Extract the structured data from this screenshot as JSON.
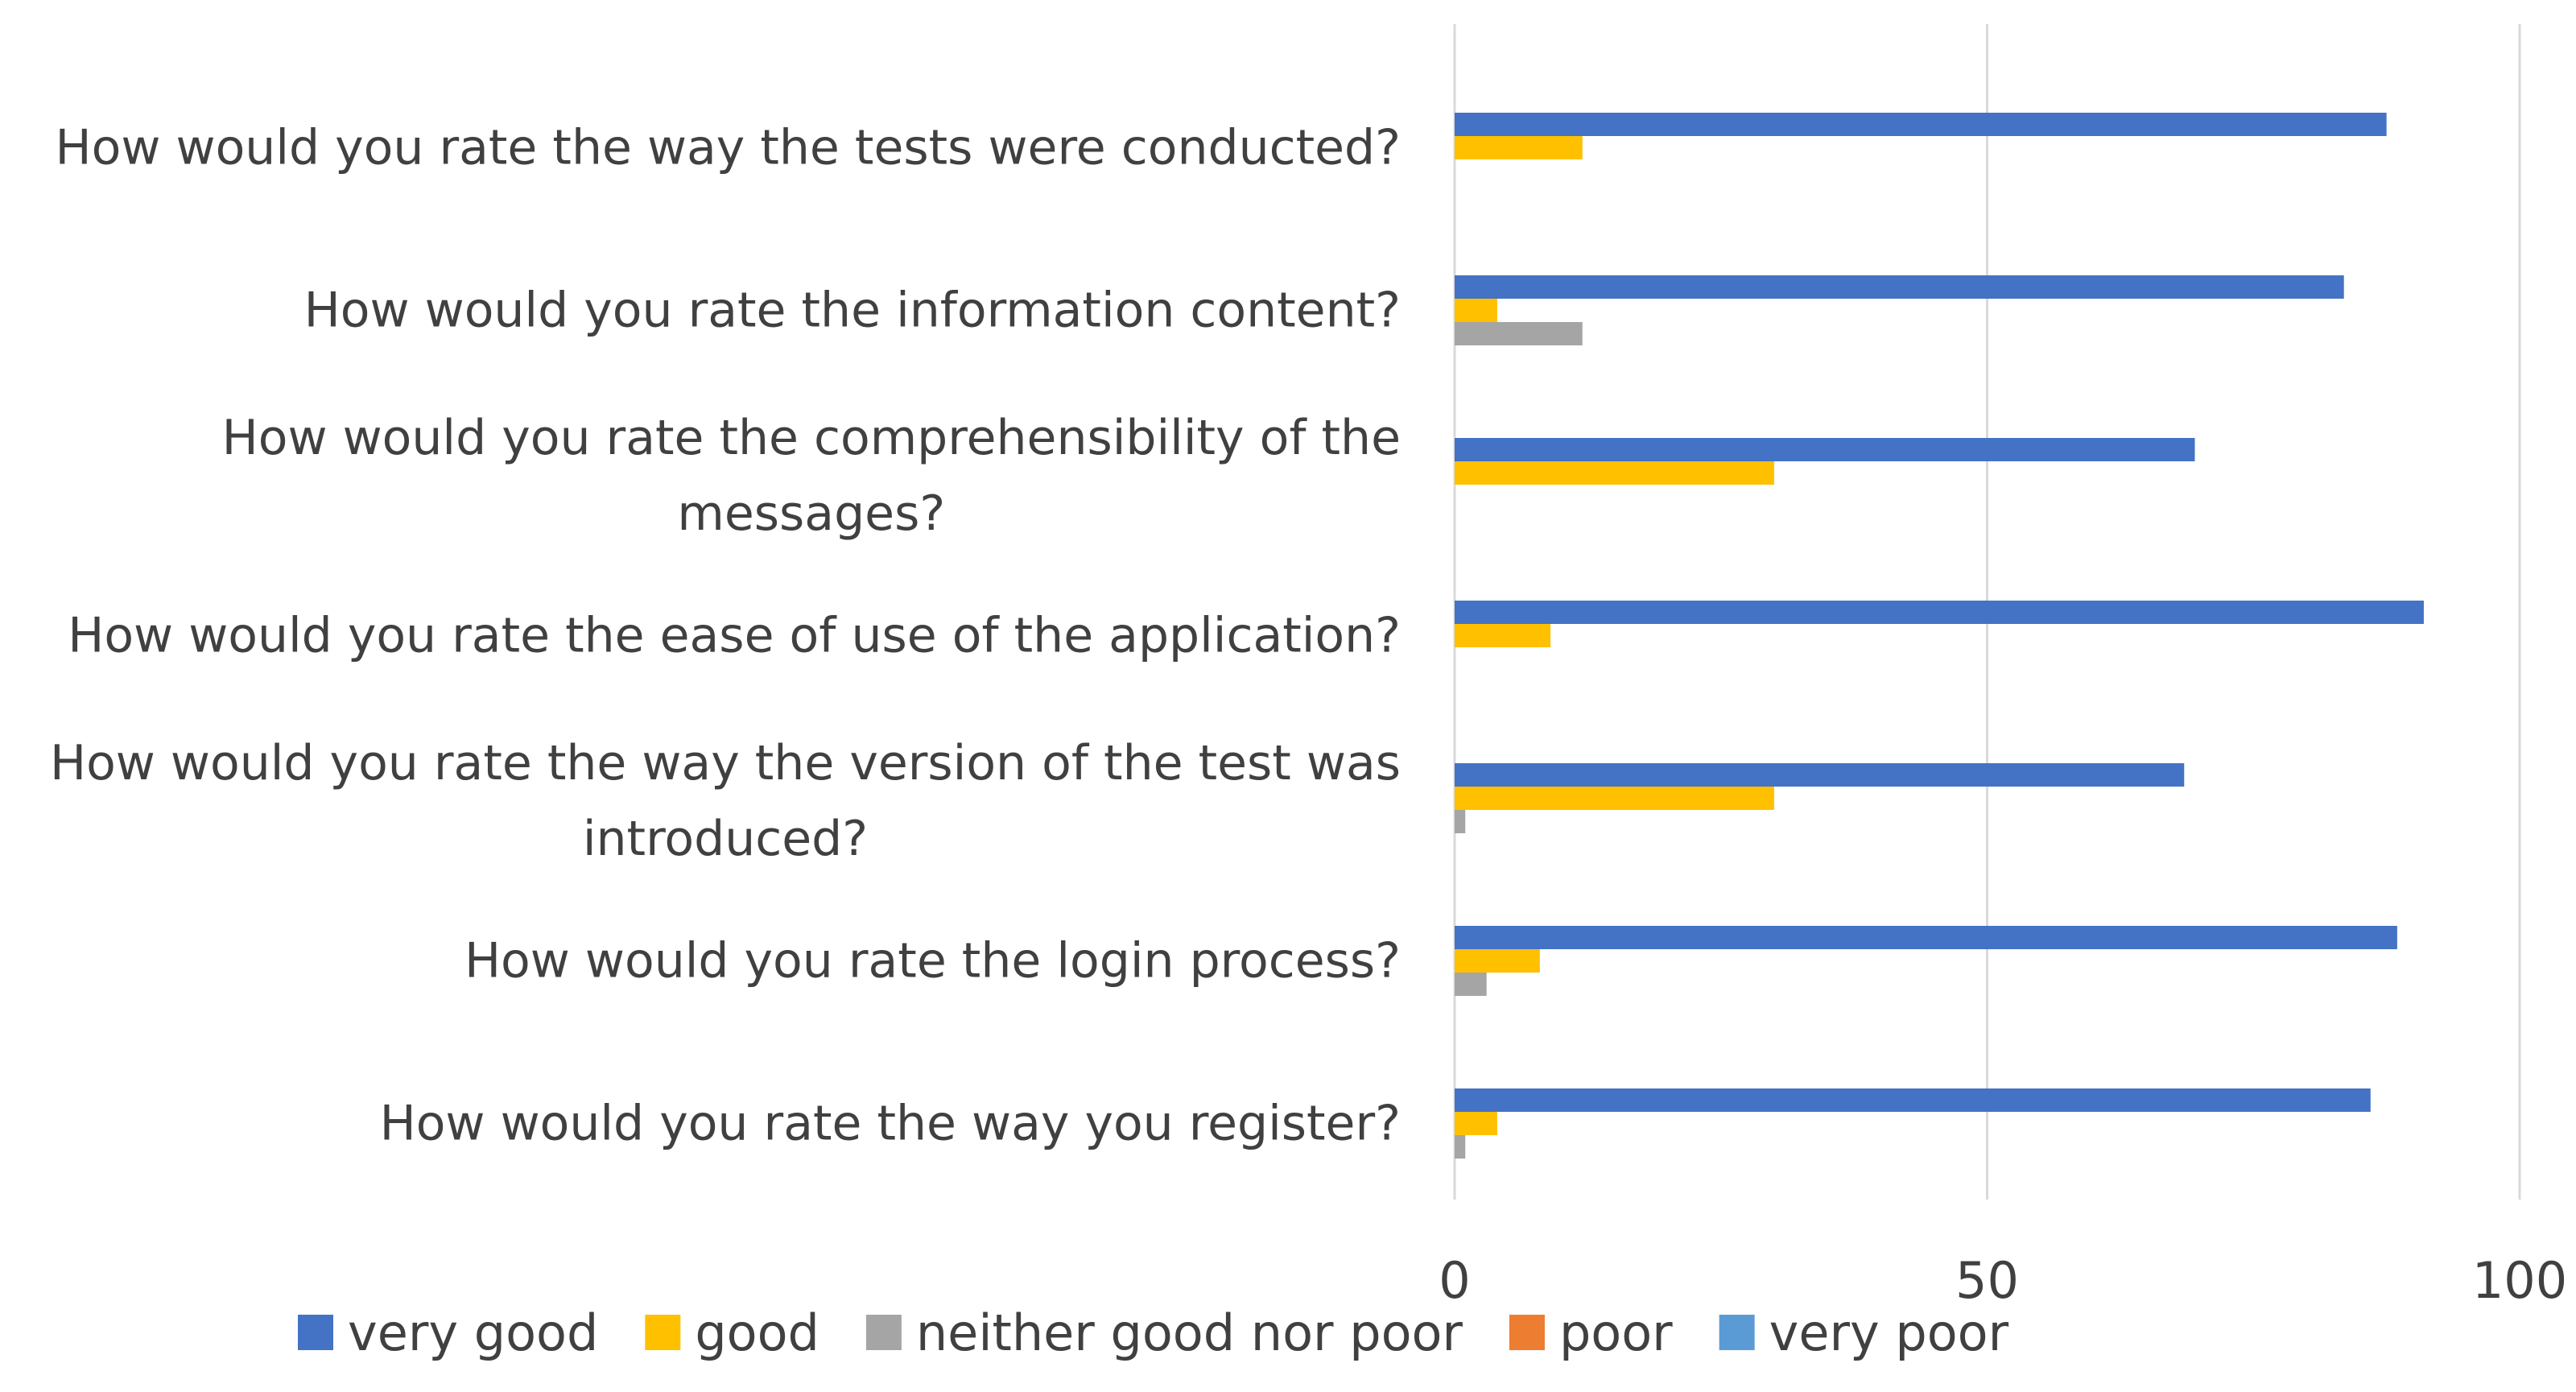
{
  "chart_data": {
    "type": "bar",
    "orientation": "horizontal",
    "categories": [
      "How would you rate the way the tests were conducted?",
      "How would you rate the information content?",
      "How would you rate the comprehensibility of the messages?",
      "How would you rate the ease of use of the application?",
      "How would you rate the way the version of the test was introduced?",
      "How would you rate the login process?",
      "How would you rate the way you register?"
    ],
    "category_lines": [
      [
        "How would you rate the way the tests were conducted?"
      ],
      [
        "How would you rate the information content?"
      ],
      [
        "How would you rate the comprehensibility of the",
        "messages?"
      ],
      [
        "How would you rate the ease of use of the application?"
      ],
      [
        "How would you rate the way the version of the test was",
        "introduced?"
      ],
      [
        "How would you rate the login process?"
      ],
      [
        "How would you rate the way you register?"
      ]
    ],
    "series": [
      {
        "name": "very good",
        "color": "#4472C4",
        "values": [
          87.5,
          83.5,
          69.5,
          91,
          68.5,
          88.5,
          86
        ]
      },
      {
        "name": "good",
        "color": "#FFC000",
        "values": [
          12,
          4,
          30,
          9,
          30,
          8,
          4
        ]
      },
      {
        "name": "neither good nor poor",
        "color": "#A5A5A5",
        "values": [
          0,
          12,
          0,
          0,
          1,
          3,
          1
        ]
      },
      {
        "name": "poor",
        "color": "#ED7D31",
        "values": [
          0,
          0,
          0,
          0,
          0,
          0,
          0
        ]
      },
      {
        "name": "very poor",
        "color": "#5B9BD5",
        "values": [
          0,
          0,
          0,
          0,
          0,
          0,
          0
        ]
      }
    ],
    "xlim": [
      0,
      100
    ],
    "x_ticks": [
      "0",
      "50",
      "100"
    ],
    "x_tick_values": [
      0,
      50,
      100
    ],
    "grid": true,
    "legend_position": "bottom",
    "title": "",
    "xlabel": "",
    "ylabel": ""
  }
}
